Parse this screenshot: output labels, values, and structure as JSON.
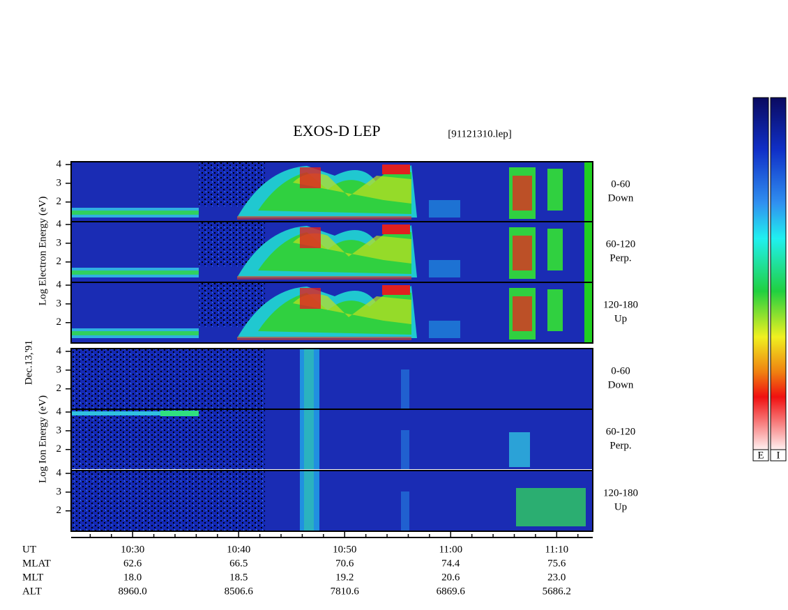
{
  "chart_data": {
    "type": "spectrogram",
    "title": "EXOS-D LEP",
    "subtitle": "[91121310.lep]",
    "date_label": "Dec.13,'91",
    "electron_ylabel": "Log Electron Energy (eV)",
    "ion_ylabel": "Log Ion Energy (eV)",
    "x_label": "UT",
    "xlim": [
      624.2,
      673.4
    ],
    "xticks": [
      {
        "value": 630,
        "label": "10:30"
      },
      {
        "value": 640,
        "label": "10:40"
      },
      {
        "value": 650,
        "label": "10:50"
      },
      {
        "value": 660,
        "label": "11:00"
      },
      {
        "value": 670,
        "label": "11:10"
      }
    ],
    "xminor": [
      626,
      628,
      632,
      634,
      636,
      638,
      642,
      644,
      646,
      648,
      652,
      654,
      656,
      658,
      662,
      664,
      666,
      668,
      672
    ],
    "ylim": [
      0.95,
      4.15
    ],
    "yticks": [
      2,
      3,
      4
    ],
    "panels": [
      {
        "range": "0-60",
        "direction": "Down"
      },
      {
        "range": "60-120",
        "direction": "Perp."
      },
      {
        "range": "120-180",
        "direction": "Up"
      }
    ],
    "ephemeris": [
      {
        "label": "MLAT",
        "values": [
          "62.6",
          "66.5",
          "70.6",
          "74.4",
          "75.6"
        ]
      },
      {
        "label": "MLT",
        "values": [
          "18.0",
          "18.5",
          "19.2",
          "20.6",
          "23.0"
        ]
      },
      {
        "label": "ALT",
        "values": [
          "8960.0",
          "8506.6",
          "7810.6",
          "6869.6",
          "5686.2"
        ]
      }
    ],
    "colorbar_labels": [
      "E",
      "I"
    ]
  }
}
